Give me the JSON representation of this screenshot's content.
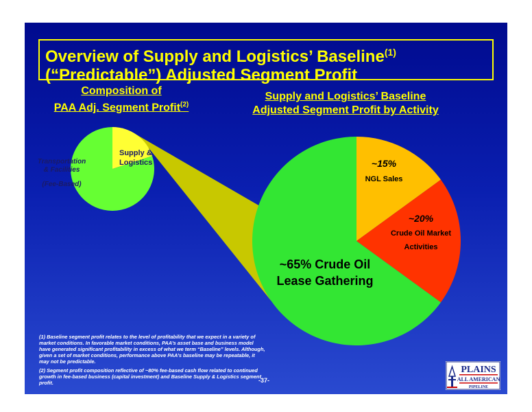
{
  "title": {
    "line1": "Overview of Supply and Logistics’ Baseline",
    "line1_sup": "(1)",
    "line2": "(“Predictable”)  Adjusted Segment Profit"
  },
  "left_heading": {
    "line1": "Composition of",
    "line2": "PAA Adj. Segment Profit",
    "line2_sup": "(2)"
  },
  "right_heading": {
    "line1": "Supply and Logistics’ Baseline",
    "line2": "Adjusted Segment Profit by Activity"
  },
  "chart_data": [
    {
      "type": "pie",
      "title": "Composition of PAA Adj. Segment Profit",
      "slices": [
        {
          "label_lines": [
            "Transportation",
            "& Facilities",
            "(Fee-Based)"
          ],
          "value": 80,
          "color": "#66ff33"
        },
        {
          "label_lines": [
            "Supply &",
            "Logistics"
          ],
          "value": 20,
          "color": "#ffff33"
        }
      ]
    },
    {
      "type": "pie",
      "title": "Supply and Logistics’ Baseline Adjusted Segment Profit by Activity",
      "slices": [
        {
          "pct_label": "~15%",
          "name": "NGL Sales",
          "value": 15,
          "color": "#ffbf00"
        },
        {
          "pct_label": "~20%",
          "name_lines": [
            "Crude Oil Market",
            "Activities"
          ],
          "value": 20,
          "color": "#ff3300"
        },
        {
          "label_lines": [
            "~65% Crude Oil",
            "Lease Gathering"
          ],
          "value": 65,
          "color": "#33e633"
        }
      ]
    }
  ],
  "footnotes": {
    "note1": "(1)  Baseline segment profit relates to the level of profitability that we expect in a variety of market conditions.  In favorable market conditions, PAA’s asset base and business model have generated significant profitability in excess of what we term “Baseline” levels.  Although, given a set of market conditions, performance above PAA’s baseline  may be repeatable, it may not be predictable.",
    "note2": "(2) Segment profit composition reflective of  ~80% fee-based cash flow related to continued growth in fee-based business  (capital investment) and Baseline Supply & Logistics segment profit."
  },
  "page_number": "-37-",
  "logo": {
    "line1": "PLAINS",
    "line2": "ALL AMERICAN",
    "line3": "PIPELINE"
  },
  "colors": {
    "background": "#0a1fb0",
    "title": "#ffff00",
    "connector": "#c8c800"
  }
}
